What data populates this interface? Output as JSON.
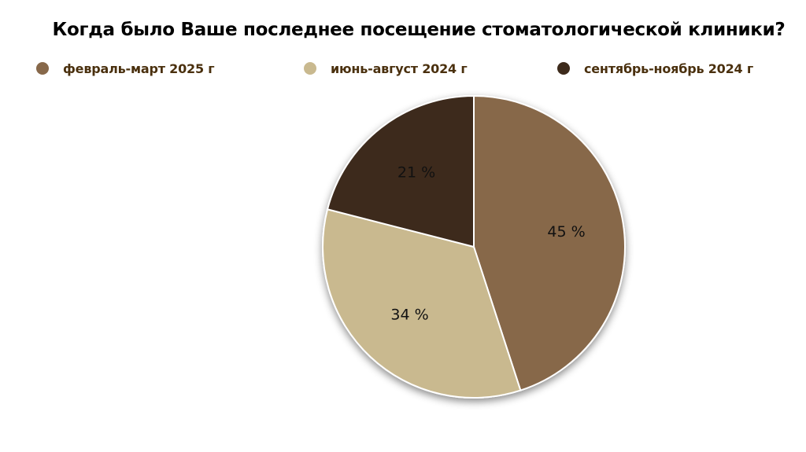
{
  "chart_data": {
    "type": "pie",
    "title": "Когда было Ваше последнее посещение стоматологической клиники?",
    "categories": [
      "февраль-март 2025 г",
      "июнь-август 2024 г",
      "сентябрь-ноябрь 2024 г"
    ],
    "values": [
      45,
      34,
      21
    ],
    "data_labels": [
      "45 %",
      "34 %",
      "21 %"
    ],
    "colors": [
      "#87684A",
      "#C9B98F",
      "#3D2A1B"
    ],
    "legend_text_color": "#4A300E",
    "legend_position": "top"
  }
}
